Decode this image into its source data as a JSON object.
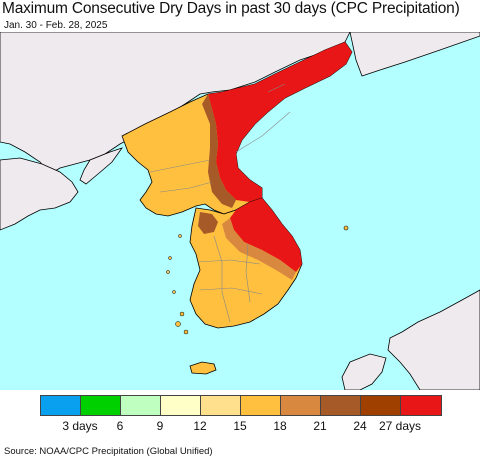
{
  "title": "Maximum Consecutive Dry Days in past 30 days (CPC Precipitation)",
  "subtitle": "Jan. 30 - Feb. 28, 2025",
  "source": "Source: NOAA/CPC Precipitation (Global Unified)",
  "colors": {
    "ocean": "#b3ffff",
    "land_outside": "#efeaee",
    "coast": "#000000",
    "border": "#888888"
  },
  "legend": {
    "colors": [
      "#0aa0f0",
      "#00d000",
      "#bfffbf",
      "#ffffc8",
      "#ffe08c",
      "#ffc040",
      "#d98840",
      "#a55a28",
      "#a04000",
      "#e81616"
    ],
    "labels": [
      "3 days",
      "6",
      "9",
      "12",
      "15",
      "18",
      "21",
      "24",
      "27 days"
    ]
  }
}
